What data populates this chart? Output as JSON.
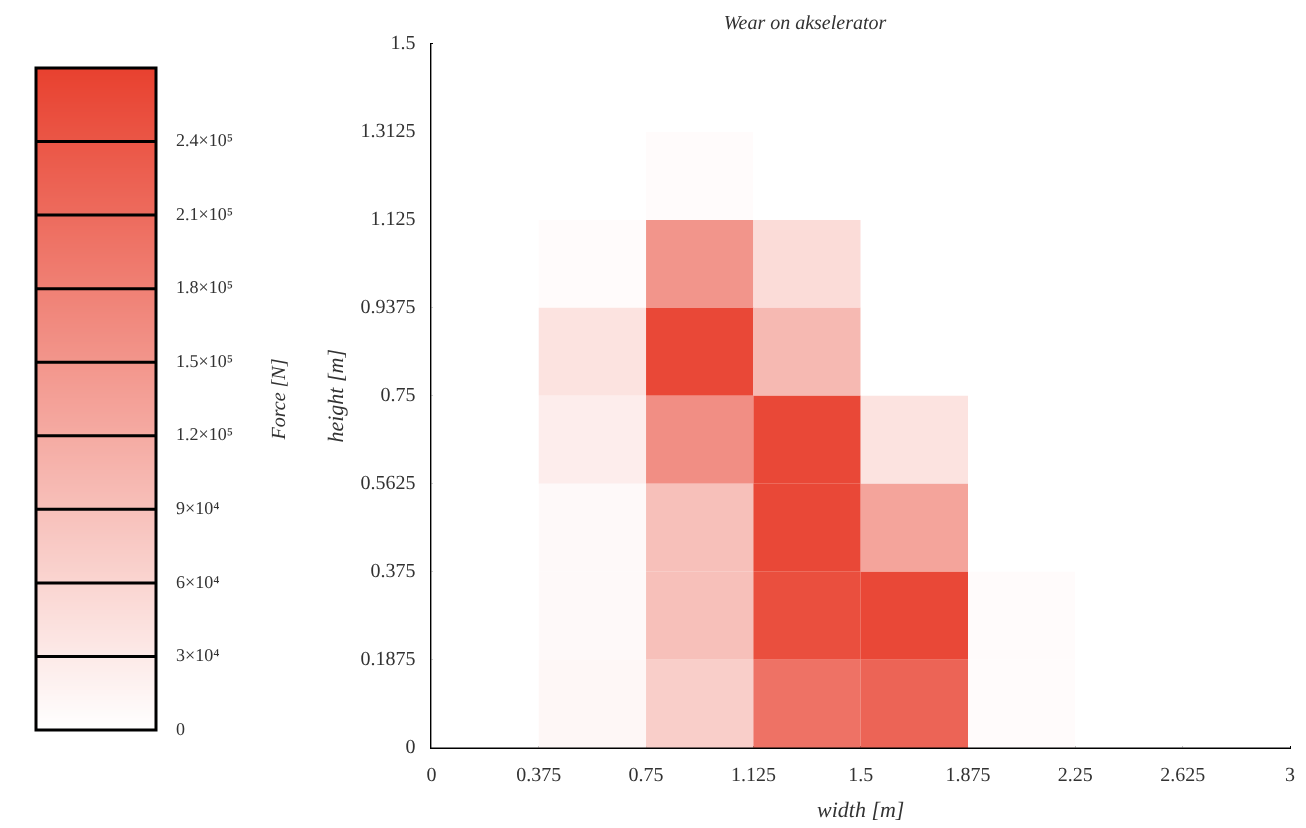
{
  "chart_data": {
    "type": "heatmap",
    "title": "Wear on akselerator",
    "xlabel": "width [m]",
    "ylabel": "height [m]",
    "clabel": "Force [N]",
    "xlim": [
      0,
      3
    ],
    "xticks": [
      0,
      0.375,
      0.75,
      1.125,
      1.5,
      1.875,
      2.25,
      2.625,
      3
    ],
    "ylim": [
      0,
      1.5
    ],
    "yticks": [
      0,
      0.1875,
      0.375,
      0.5625,
      0.75,
      0.9375,
      1.125,
      1.3125,
      1.5
    ],
    "cells": [
      [
        0,
        0,
        0,
        0,
        0,
        0,
        0,
        0
      ],
      [
        0,
        0,
        5000,
        0,
        0,
        0,
        0,
        0
      ],
      [
        0,
        5000,
        150000,
        50000,
        0,
        0,
        0,
        0
      ],
      [
        0,
        40000,
        260000,
        100000,
        0,
        0,
        0,
        0
      ],
      [
        0,
        25000,
        160000,
        260000,
        40000,
        0,
        0,
        0
      ],
      [
        0,
        8000,
        90000,
        260000,
        130000,
        0,
        0,
        0
      ],
      [
        0,
        8000,
        90000,
        250000,
        260000,
        5000,
        0,
        0
      ],
      [
        0,
        12000,
        70000,
        200000,
        220000,
        5000,
        0,
        0
      ]
    ],
    "clim": [
      0,
      270000
    ],
    "cticks": [
      0,
      {
        "value": 30000,
        "label": "3×10⁴"
      },
      {
        "value": 60000,
        "label": "6×10⁴"
      },
      {
        "value": 90000,
        "label": "9×10⁴"
      },
      {
        "value": 120000,
        "label": "1.2×10⁵"
      },
      {
        "value": 150000,
        "label": "1.5×10⁵"
      },
      {
        "value": 180000,
        "label": "1.8×10⁵"
      },
      {
        "value": 210000,
        "label": "2.1×10⁵"
      },
      {
        "value": 240000,
        "label": "2.4×10⁵"
      }
    ]
  }
}
